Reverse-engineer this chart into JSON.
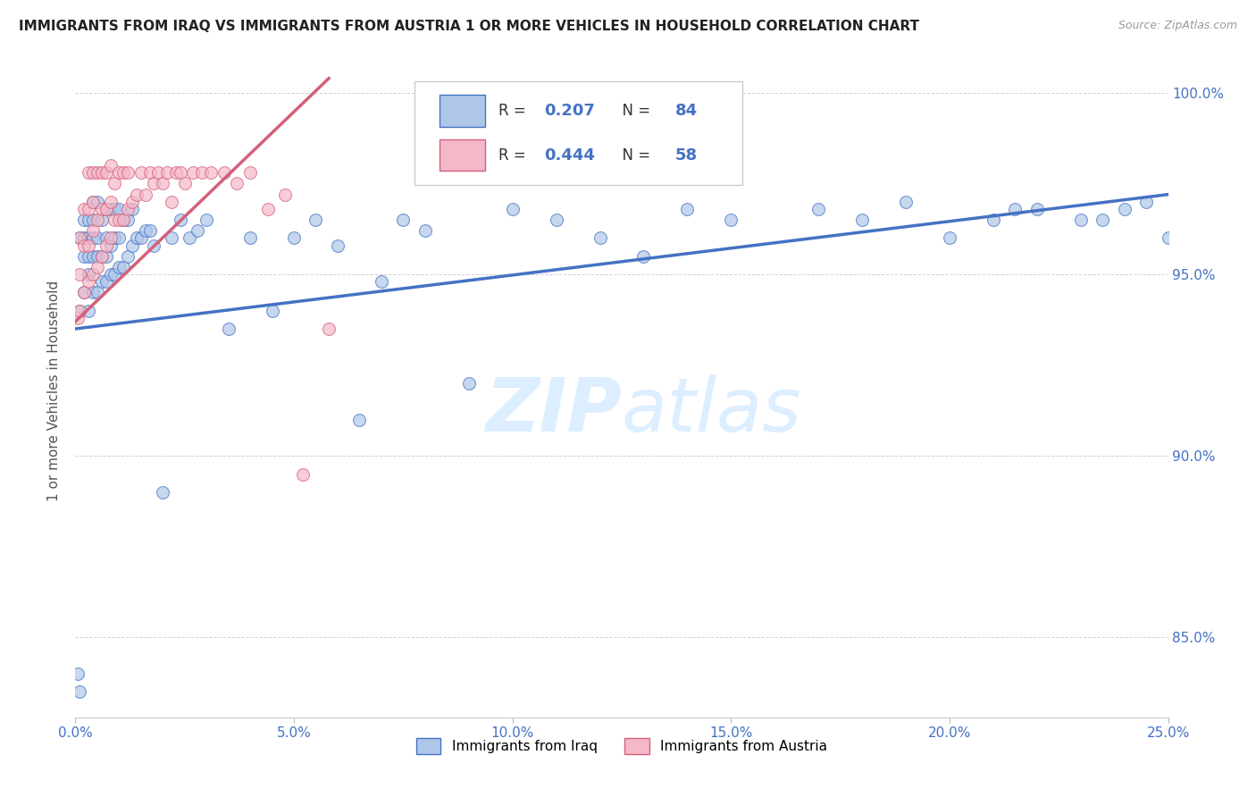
{
  "title": "IMMIGRANTS FROM IRAQ VS IMMIGRANTS FROM AUSTRIA 1 OR MORE VEHICLES IN HOUSEHOLD CORRELATION CHART",
  "source": "Source: ZipAtlas.com",
  "ylabel": "1 or more Vehicles in Household",
  "xlabel_ticks": [
    "0.0%",
    "5.0%",
    "10.0%",
    "15.0%",
    "20.0%",
    "25.0%"
  ],
  "ylabel_ticks": [
    "85.0%",
    "90.0%",
    "95.0%",
    "100.0%"
  ],
  "xlim": [
    0.0,
    0.25
  ],
  "ylim": [
    0.828,
    1.008
  ],
  "R_iraq": 0.207,
  "N_iraq": 84,
  "R_austria": 0.444,
  "N_austria": 58,
  "color_iraq": "#aec6e8",
  "color_austria": "#f4b8c8",
  "trendline_iraq": "#4472c4",
  "trendline_austria": "#d4607a",
  "watermark_color": "#dceeff",
  "background": "#ffffff",
  "legend_label_iraq": "Immigrants from Iraq",
  "legend_label_austria": "Immigrants from Austria",
  "iraq_x": [
    0.0005,
    0.001,
    0.001,
    0.001,
    0.002,
    0.002,
    0.002,
    0.002,
    0.003,
    0.003,
    0.003,
    0.003,
    0.003,
    0.004,
    0.004,
    0.004,
    0.004,
    0.004,
    0.005,
    0.005,
    0.005,
    0.005,
    0.006,
    0.006,
    0.006,
    0.007,
    0.007,
    0.007,
    0.007,
    0.008,
    0.008,
    0.008,
    0.009,
    0.009,
    0.009,
    0.01,
    0.01,
    0.01,
    0.011,
    0.011,
    0.012,
    0.012,
    0.013,
    0.013,
    0.014,
    0.015,
    0.016,
    0.017,
    0.018,
    0.02,
    0.022,
    0.024,
    0.026,
    0.028,
    0.03,
    0.035,
    0.04,
    0.045,
    0.05,
    0.055,
    0.06,
    0.065,
    0.07,
    0.075,
    0.08,
    0.09,
    0.1,
    0.11,
    0.12,
    0.13,
    0.14,
    0.15,
    0.17,
    0.18,
    0.19,
    0.2,
    0.21,
    0.215,
    0.22,
    0.23,
    0.235,
    0.24,
    0.245,
    0.25
  ],
  "iraq_y": [
    0.84,
    0.835,
    0.94,
    0.96,
    0.945,
    0.955,
    0.96,
    0.965,
    0.94,
    0.95,
    0.955,
    0.96,
    0.965,
    0.945,
    0.955,
    0.96,
    0.965,
    0.97,
    0.945,
    0.955,
    0.96,
    0.97,
    0.948,
    0.955,
    0.965,
    0.948,
    0.955,
    0.96,
    0.968,
    0.95,
    0.958,
    0.968,
    0.95,
    0.96,
    0.968,
    0.952,
    0.96,
    0.968,
    0.952,
    0.965,
    0.955,
    0.965,
    0.958,
    0.968,
    0.96,
    0.96,
    0.962,
    0.962,
    0.958,
    0.89,
    0.96,
    0.965,
    0.96,
    0.962,
    0.965,
    0.935,
    0.96,
    0.94,
    0.96,
    0.965,
    0.958,
    0.91,
    0.948,
    0.965,
    0.962,
    0.92,
    0.968,
    0.965,
    0.96,
    0.955,
    0.968,
    0.965,
    0.968,
    0.965,
    0.97,
    0.96,
    0.965,
    0.968,
    0.968,
    0.965,
    0.965,
    0.968,
    0.97,
    0.96
  ],
  "austria_x": [
    0.0005,
    0.001,
    0.001,
    0.001,
    0.002,
    0.002,
    0.002,
    0.003,
    0.003,
    0.003,
    0.003,
    0.004,
    0.004,
    0.004,
    0.004,
    0.005,
    0.005,
    0.005,
    0.006,
    0.006,
    0.006,
    0.007,
    0.007,
    0.007,
    0.008,
    0.008,
    0.008,
    0.009,
    0.009,
    0.01,
    0.01,
    0.011,
    0.011,
    0.012,
    0.012,
    0.013,
    0.014,
    0.015,
    0.016,
    0.017,
    0.018,
    0.019,
    0.02,
    0.021,
    0.022,
    0.023,
    0.024,
    0.025,
    0.027,
    0.029,
    0.031,
    0.034,
    0.037,
    0.04,
    0.044,
    0.048,
    0.052,
    0.058
  ],
  "austria_y": [
    0.938,
    0.94,
    0.95,
    0.96,
    0.945,
    0.958,
    0.968,
    0.948,
    0.958,
    0.968,
    0.978,
    0.95,
    0.962,
    0.97,
    0.978,
    0.952,
    0.965,
    0.978,
    0.955,
    0.968,
    0.978,
    0.958,
    0.968,
    0.978,
    0.96,
    0.97,
    0.98,
    0.965,
    0.975,
    0.965,
    0.978,
    0.965,
    0.978,
    0.968,
    0.978,
    0.97,
    0.972,
    0.978,
    0.972,
    0.978,
    0.975,
    0.978,
    0.975,
    0.978,
    0.97,
    0.978,
    0.978,
    0.975,
    0.978,
    0.978,
    0.978,
    0.978,
    0.975,
    0.978,
    0.968,
    0.972,
    0.895,
    0.935
  ],
  "iraq_trendline_x": [
    0.0,
    0.25
  ],
  "iraq_trendline_y": [
    0.935,
    0.972
  ],
  "austria_trendline_x": [
    0.0,
    0.058
  ],
  "austria_trendline_y": [
    0.937,
    1.004
  ]
}
